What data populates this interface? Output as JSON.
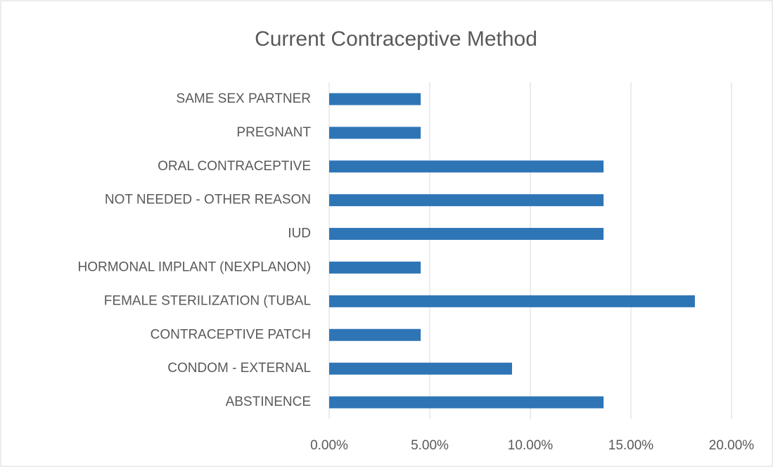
{
  "chart_data": {
    "type": "barh",
    "title": "Current Contraceptive Method",
    "categories": [
      "ABSTINENCE",
      "CONDOM - EXTERNAL",
      "CONTRACEPTIVE PATCH",
      "FEMALE STERILIZATION (TUBAL",
      "HORMONAL IMPLANT (NEXPLANON)",
      "IUD",
      "NOT NEEDED - OTHER REASON",
      "ORAL CONTRACEPTIVE",
      "PREGNANT",
      "SAME SEX PARTNER"
    ],
    "values": [
      13.64,
      9.09,
      4.55,
      18.18,
      4.55,
      13.64,
      13.64,
      13.64,
      4.55,
      4.55
    ],
    "color": "#2e75b6",
    "xlim": [
      0,
      20
    ],
    "xticks": [
      {
        "value": 0,
        "label": "0.00%"
      },
      {
        "value": 5,
        "label": "5.00%"
      },
      {
        "value": 10,
        "label": "10.00%"
      },
      {
        "value": 15,
        "label": "15.00%"
      },
      {
        "value": 20,
        "label": "20.00%"
      }
    ],
    "grid": true
  }
}
